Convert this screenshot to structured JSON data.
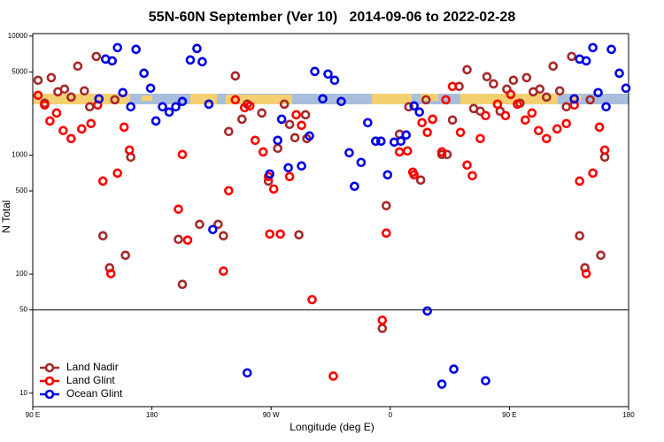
{
  "chart_data": {
    "type": "scatter",
    "title": "55N-60N September (Ver 10)   2014-09-06 to 2022-02-28",
    "x_label": "Longitude (deg E)",
    "y_label": "N Total",
    "log_y": true,
    "legend": "bottom-left",
    "xlim": [
      90,
      540
    ],
    "ylim": [
      7.7,
      10500
    ],
    "xticks": [
      {
        "value": 90,
        "label": "90 E"
      },
      {
        "value": 180,
        "label": "180"
      },
      {
        "value": 270,
        "label": "90 W"
      },
      {
        "value": 360,
        "label": "0"
      },
      {
        "value": 450,
        "label": "90 E"
      },
      {
        "value": 540,
        "label": "180"
      }
    ],
    "yticks": [
      10,
      50,
      100,
      500,
      1000,
      5000,
      10000
    ],
    "reference_line": 50,
    "series": [
      {
        "name": "Land Nadir",
        "color": "#a52a2a",
        "x": [
          94,
          99,
          104,
          109,
          114,
          119,
          124,
          129,
          133,
          138,
          143,
          148,
          152,
          160,
          164,
          203,
          200,
          216,
          230,
          234,
          238,
          243,
          248,
          252,
          263,
          268,
          275,
          280,
          284,
          291,
          296,
          297,
          288,
          354,
          357,
          367,
          374,
          383,
          387,
          392,
          399,
          403,
          407,
          412,
          418,
          423,
          428,
          433,
          438,
          443,
          448,
          453,
          458,
          463,
          468,
          473,
          478,
          483,
          488,
          493,
          497,
          503,
          507,
          511,
          519,
          522
        ],
        "values": [
          4256,
          2729,
          4477,
          3406,
          3586,
          3074,
          5594,
          3467,
          2547,
          6745,
          210,
          113,
          2917,
          144,
          961,
          82,
          196,
          262,
          262,
          210,
          1578,
          4634,
          2004,
          2681,
          2259,
          605,
          1140,
          2681,
          1811,
          214,
          2183,
          1377,
          1400,
          35,
          376,
          1500,
          2547,
          617,
          2917,
          2004,
          1012,
          1012,
          1972,
          3776,
          5224,
          2460,
          2339,
          4560,
          3972,
          2339,
          3586,
          4256,
          2729,
          4477,
          3406,
          3586,
          3074,
          5594,
          3467,
          2547,
          6745,
          210,
          113,
          2917,
          144,
          961
        ]
      },
      {
        "name": "Land Glint",
        "color": "#ff0000",
        "x": [
          94,
          99,
          103,
          108,
          113,
          119,
          127,
          134,
          139,
          143,
          149,
          154,
          159,
          163,
          203,
          200,
          207,
          238,
          234,
          243,
          250,
          254,
          258,
          264,
          268,
          272,
          269,
          277,
          284,
          289,
          293,
          301,
          317,
          354,
          357,
          367,
          373,
          377,
          378,
          384,
          388,
          392,
          399,
          402,
          407,
          413,
          418,
          422,
          428,
          432,
          441,
          447,
          451,
          456,
          462,
          467,
          472,
          478,
          486,
          493,
          499,
          503,
          508,
          513,
          518,
          522
        ],
        "values": [
          3182,
          2636,
          1936,
          2259,
          1607,
          1377,
          1660,
          1841,
          2636,
          605,
          101,
          706,
          1718,
          1103,
          1012,
          351,
          193,
          502,
          106,
          2917,
          2504,
          2592,
          1330,
          1064,
          660,
          519,
          217,
          217,
          660,
          2183,
          1780,
          61,
          13.9,
          41,
          221,
          1064,
          1084,
          719,
          683,
          1873,
          1552,
          2004,
          1064,
          2917,
          3776,
          1552,
          824,
          671,
          1377,
          2147,
          2681,
          2147,
          3236,
          2681,
          1972,
          2259,
          1607,
          1377,
          1660,
          1841,
          2636,
          605,
          101,
          706,
          1718,
          1103
        ]
      },
      {
        "name": "Ocean Glint",
        "color": "#0000e6",
        "x": [
          140,
          145,
          150,
          154,
          158,
          164,
          168,
          174,
          179,
          183,
          188,
          193,
          198,
          203,
          209,
          214,
          218,
          223,
          226,
          252,
          269,
          275,
          278,
          283,
          293,
          299,
          303,
          309,
          313,
          318,
          323,
          329,
          333,
          338,
          343,
          349,
          353,
          358,
          363,
          368,
          372,
          378,
          382,
          388,
          399,
          408,
          432,
          499,
          503,
          508,
          513,
          517,
          523,
          527,
          533,
          538
        ],
        "values": [
          2972,
          6412,
          6195,
          8002,
          3350,
          2547,
          7740,
          4877,
          3648,
          1936,
          2547,
          2300,
          2547,
          2823,
          6302,
          7870,
          6090,
          2681,
          237,
          14.8,
          695,
          1330,
          2004,
          783,
          811,
          1449,
          5047,
          2972,
          4797,
          4256,
          2823,
          1047,
          547,
          868,
          1873,
          1309,
          1309,
          683,
          1286,
          1309,
          1476,
          2592,
          2300,
          49,
          11.9,
          15.9,
          12.7,
          2972,
          6412,
          6195,
          8002,
          3350,
          2547,
          7740,
          4877,
          3648
        ]
      }
    ]
  }
}
